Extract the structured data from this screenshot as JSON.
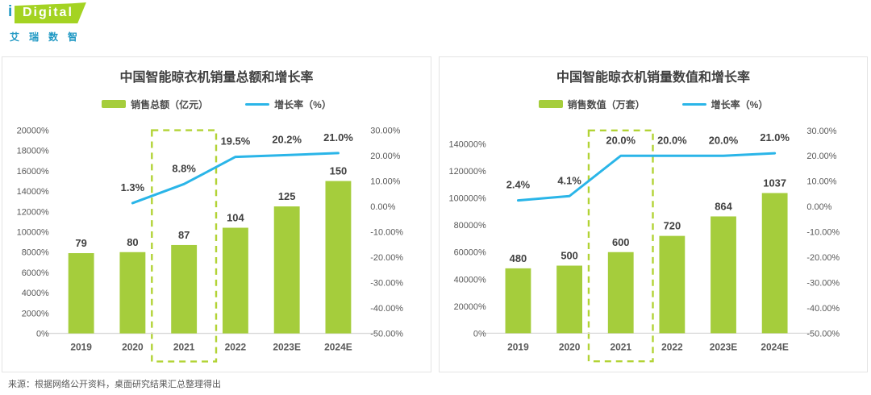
{
  "logo": {
    "i": "i",
    "brand": "Digital",
    "subtitle": "艾瑞数智"
  },
  "footer": {
    "source": "来源：根据网络公开资料，桌面研究结果汇总整理得出"
  },
  "colors": {
    "bar": "#a5cd3c",
    "line": "#2ab5e8",
    "highlight_border": "#b2d335",
    "title_text": "#3f3f3f",
    "axis_text": "#595959",
    "data_label_text": "#404040",
    "card_border": "#e4e4e4",
    "axis_line": "#d9d9d9",
    "logo_green": "#a4d322",
    "logo_teal": "#2199c4"
  },
  "chart_data": [
    {
      "type": "bar",
      "subtype": "bar+line combo, dual axis",
      "title": "中国智能晾衣机销量总额和增长率",
      "categories": [
        "2019",
        "2020",
        "2021",
        "2022",
        "2023E",
        "2024E"
      ],
      "series": [
        {
          "name": "销售总额（亿元）",
          "kind": "bar",
          "values": [
            79,
            80,
            87,
            104,
            125,
            150
          ]
        },
        {
          "name": "增长率（%）",
          "kind": "line",
          "values": [
            null,
            1.3,
            8.8,
            19.5,
            20.2,
            21.0
          ],
          "point_labels": [
            "",
            "1.3%",
            "8.8%",
            "19.5%",
            "20.2%",
            "21.0%"
          ]
        }
      ],
      "left_axis": {
        "tick_labels": [
          "20000%",
          "18000%",
          "16000%",
          "14000%",
          "12000%",
          "10000%",
          "8000%",
          "6000%",
          "4000%",
          "2000%",
          "0%"
        ],
        "tick_values": [
          200,
          180,
          160,
          140,
          120,
          100,
          80,
          60,
          40,
          20,
          0
        ],
        "axis_max": 200,
        "axis_min": 0
      },
      "right_axis": {
        "tick_labels": [
          "30.00%",
          "20.00%",
          "10.00%",
          "0.00%",
          "-10.00%",
          "-20.00%",
          "-30.00%",
          "-40.00%",
          "-50.00%"
        ],
        "tick_values": [
          30,
          20,
          10,
          0,
          -10,
          -20,
          -30,
          -40,
          -50
        ],
        "axis_max": 30,
        "axis_min": -50
      },
      "highlight_category": "2021",
      "highlight_index": 2,
      "grid": false,
      "legend_position": "top"
    },
    {
      "type": "bar",
      "subtype": "bar+line combo, dual axis",
      "title": "中国智能晾衣机销量数值和增长率",
      "categories": [
        "2019",
        "2020",
        "2021",
        "2022",
        "2023E",
        "2024E"
      ],
      "series": [
        {
          "name": "销售数值（万套）",
          "kind": "bar",
          "values": [
            480,
            500,
            600,
            720,
            864,
            1037
          ]
        },
        {
          "name": "增长率（%）",
          "kind": "line",
          "values": [
            2.4,
            4.1,
            20.0,
            20.0,
            20.0,
            21.0
          ],
          "point_labels": [
            "2.4%",
            "4.1%",
            "20.0%",
            "20.0%",
            "20.0%",
            "21.0%"
          ]
        }
      ],
      "left_axis": {
        "tick_labels": [
          "140000%",
          "120000%",
          "100000%",
          "80000%",
          "60000%",
          "40000%",
          "20000%",
          "0%"
        ],
        "tick_values": [
          1400,
          1200,
          1000,
          800,
          600,
          400,
          200,
          0
        ],
        "axis_max": 1500,
        "axis_min": 0
      },
      "right_axis": {
        "tick_labels": [
          "30.00%",
          "20.00%",
          "10.00%",
          "0.00%",
          "-10.00%",
          "-20.00%",
          "-30.00%",
          "-40.00%",
          "-50.00%"
        ],
        "tick_values": [
          30,
          20,
          10,
          0,
          -10,
          -20,
          -30,
          -40,
          -50
        ],
        "axis_max": 30,
        "axis_min": -50
      },
      "highlight_category": "2021",
      "highlight_index": 2,
      "grid": false,
      "legend_position": "top"
    }
  ]
}
